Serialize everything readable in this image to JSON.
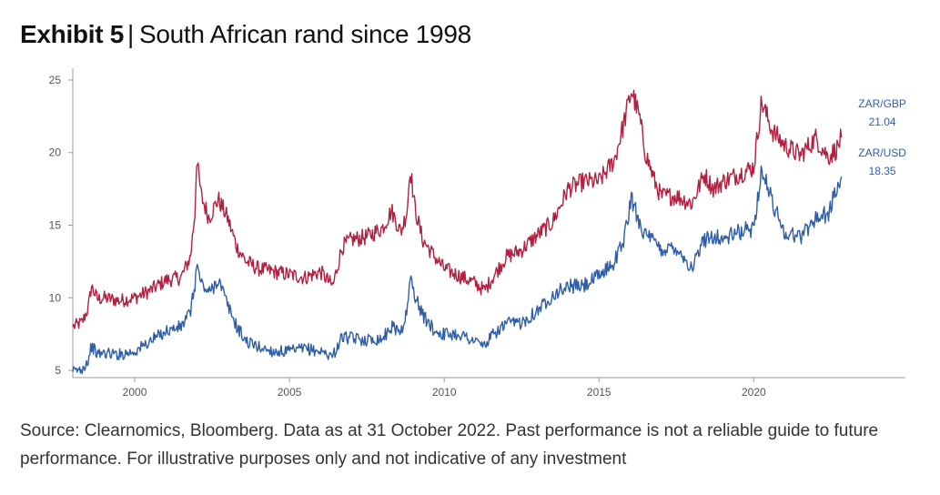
{
  "header": {
    "exhibit_label": "Exhibit 5",
    "separator": "|",
    "subtitle": "South African rand since 1998"
  },
  "chart_data": {
    "type": "line",
    "title": "South African rand since 1998",
    "xlabel": "",
    "ylabel": "",
    "xlim": [
      1998.0,
      2024.9
    ],
    "ylim": [
      4.5,
      25.5
    ],
    "x_ticks": [
      2000,
      2005,
      2010,
      2015,
      2020
    ],
    "y_ticks": [
      5,
      10,
      15,
      20,
      25
    ],
    "grid": false,
    "series": [
      {
        "name": "ZAR/GBP",
        "end_label": "21.04",
        "color": "#B3203F",
        "points": [
          [
            1998.0,
            8.0
          ],
          [
            1998.3,
            8.3
          ],
          [
            1998.5,
            9.3
          ],
          [
            1998.6,
            10.8
          ],
          [
            1998.8,
            9.9
          ],
          [
            1999.0,
            10.0
          ],
          [
            1999.5,
            9.8
          ],
          [
            2000.0,
            10.0
          ],
          [
            2000.5,
            10.5
          ],
          [
            2001.0,
            11.2
          ],
          [
            2001.5,
            11.4
          ],
          [
            2001.8,
            12.8
          ],
          [
            2001.95,
            16.0
          ],
          [
            2002.0,
            19.6
          ],
          [
            2002.15,
            17.0
          ],
          [
            2002.4,
            15.5
          ],
          [
            2002.7,
            16.8
          ],
          [
            2003.0,
            15.5
          ],
          [
            2003.3,
            13.5
          ],
          [
            2003.6,
            12.5
          ],
          [
            2004.0,
            12.0
          ],
          [
            2004.5,
            11.8
          ],
          [
            2005.0,
            11.6
          ],
          [
            2005.5,
            11.4
          ],
          [
            2006.0,
            11.8
          ],
          [
            2006.4,
            10.8
          ],
          [
            2006.7,
            13.5
          ],
          [
            2007.0,
            14.0
          ],
          [
            2007.5,
            14.2
          ],
          [
            2008.0,
            14.8
          ],
          [
            2008.3,
            16.0
          ],
          [
            2008.6,
            14.5
          ],
          [
            2008.8,
            16.0
          ],
          [
            2008.9,
            19.0
          ],
          [
            2009.05,
            16.2
          ],
          [
            2009.3,
            14.0
          ],
          [
            2009.7,
            12.8
          ],
          [
            2010.0,
            12.0
          ],
          [
            2010.5,
            11.5
          ],
          [
            2011.0,
            11.0
          ],
          [
            2011.3,
            10.5
          ],
          [
            2011.6,
            11.5
          ],
          [
            2012.0,
            12.8
          ],
          [
            2012.5,
            13.3
          ],
          [
            2013.0,
            14.3
          ],
          [
            2013.5,
            15.2
          ],
          [
            2014.0,
            17.5
          ],
          [
            2014.5,
            18.0
          ],
          [
            2015.0,
            18.0
          ],
          [
            2015.5,
            19.5
          ],
          [
            2015.8,
            22.0
          ],
          [
            2016.05,
            24.3
          ],
          [
            2016.3,
            22.5
          ],
          [
            2016.5,
            20.0
          ],
          [
            2016.8,
            18.0
          ],
          [
            2017.0,
            17.0
          ],
          [
            2017.5,
            17.0
          ],
          [
            2018.0,
            16.5
          ],
          [
            2018.4,
            18.5
          ],
          [
            2018.7,
            17.5
          ],
          [
            2019.0,
            18.0
          ],
          [
            2019.5,
            18.5
          ],
          [
            2020.0,
            19.0
          ],
          [
            2020.25,
            23.5
          ],
          [
            2020.6,
            21.5
          ],
          [
            2021.0,
            20.5
          ],
          [
            2021.5,
            19.8
          ],
          [
            2022.0,
            21.0
          ],
          [
            2022.4,
            19.7
          ],
          [
            2022.7,
            20.3
          ],
          [
            2022.83,
            21.04
          ]
        ]
      },
      {
        "name": "ZAR/USD",
        "end_label": "18.35",
        "color": "#2F5DA8",
        "points": [
          [
            1998.0,
            4.9
          ],
          [
            1998.3,
            5.1
          ],
          [
            1998.5,
            5.7
          ],
          [
            1998.6,
            6.7
          ],
          [
            1998.8,
            6.1
          ],
          [
            1999.0,
            6.2
          ],
          [
            1999.5,
            6.1
          ],
          [
            2000.0,
            6.3
          ],
          [
            2000.5,
            7.0
          ],
          [
            2001.0,
            7.7
          ],
          [
            2001.5,
            8.0
          ],
          [
            2001.8,
            9.0
          ],
          [
            2001.95,
            11.0
          ],
          [
            2002.0,
            12.3
          ],
          [
            2002.15,
            11.0
          ],
          [
            2002.4,
            10.3
          ],
          [
            2002.7,
            11.3
          ],
          [
            2003.0,
            9.5
          ],
          [
            2003.3,
            8.0
          ],
          [
            2003.6,
            7.0
          ],
          [
            2004.0,
            6.6
          ],
          [
            2004.5,
            6.3
          ],
          [
            2005.0,
            6.3
          ],
          [
            2005.5,
            6.5
          ],
          [
            2006.0,
            6.3
          ],
          [
            2006.4,
            6.0
          ],
          [
            2006.7,
            7.3
          ],
          [
            2007.0,
            7.2
          ],
          [
            2007.5,
            7.1
          ],
          [
            2008.0,
            7.2
          ],
          [
            2008.3,
            8.0
          ],
          [
            2008.6,
            7.7
          ],
          [
            2008.8,
            9.0
          ],
          [
            2008.9,
            11.4
          ],
          [
            2009.05,
            10.2
          ],
          [
            2009.3,
            8.8
          ],
          [
            2009.7,
            7.7
          ],
          [
            2010.0,
            7.5
          ],
          [
            2010.5,
            7.5
          ],
          [
            2011.0,
            7.0
          ],
          [
            2011.3,
            6.7
          ],
          [
            2011.6,
            7.5
          ],
          [
            2012.0,
            8.2
          ],
          [
            2012.5,
            8.3
          ],
          [
            2013.0,
            9.1
          ],
          [
            2013.5,
            10.2
          ],
          [
            2014.0,
            10.8
          ],
          [
            2014.5,
            10.8
          ],
          [
            2015.0,
            11.5
          ],
          [
            2015.5,
            12.5
          ],
          [
            2015.8,
            14.0
          ],
          [
            2016.05,
            16.8
          ],
          [
            2016.3,
            15.3
          ],
          [
            2016.5,
            14.3
          ],
          [
            2016.8,
            13.8
          ],
          [
            2017.0,
            13.3
          ],
          [
            2017.5,
            13.5
          ],
          [
            2018.0,
            12.0
          ],
          [
            2018.4,
            14.0
          ],
          [
            2018.7,
            14.3
          ],
          [
            2019.0,
            14.0
          ],
          [
            2019.5,
            14.5
          ],
          [
            2020.0,
            14.8
          ],
          [
            2020.25,
            18.9
          ],
          [
            2020.6,
            16.6
          ],
          [
            2021.0,
            14.5
          ],
          [
            2021.5,
            14.2
          ],
          [
            2022.0,
            15.5
          ],
          [
            2022.4,
            15.8
          ],
          [
            2022.7,
            17.5
          ],
          [
            2022.83,
            18.35
          ]
        ]
      }
    ]
  },
  "footnote": {
    "text": "Source: Clearnomics, Bloomberg. Data as at 31 October 2022. Past performance is not a reliable guide to future performance. For illustrative purposes only and not indicative of any investment"
  }
}
